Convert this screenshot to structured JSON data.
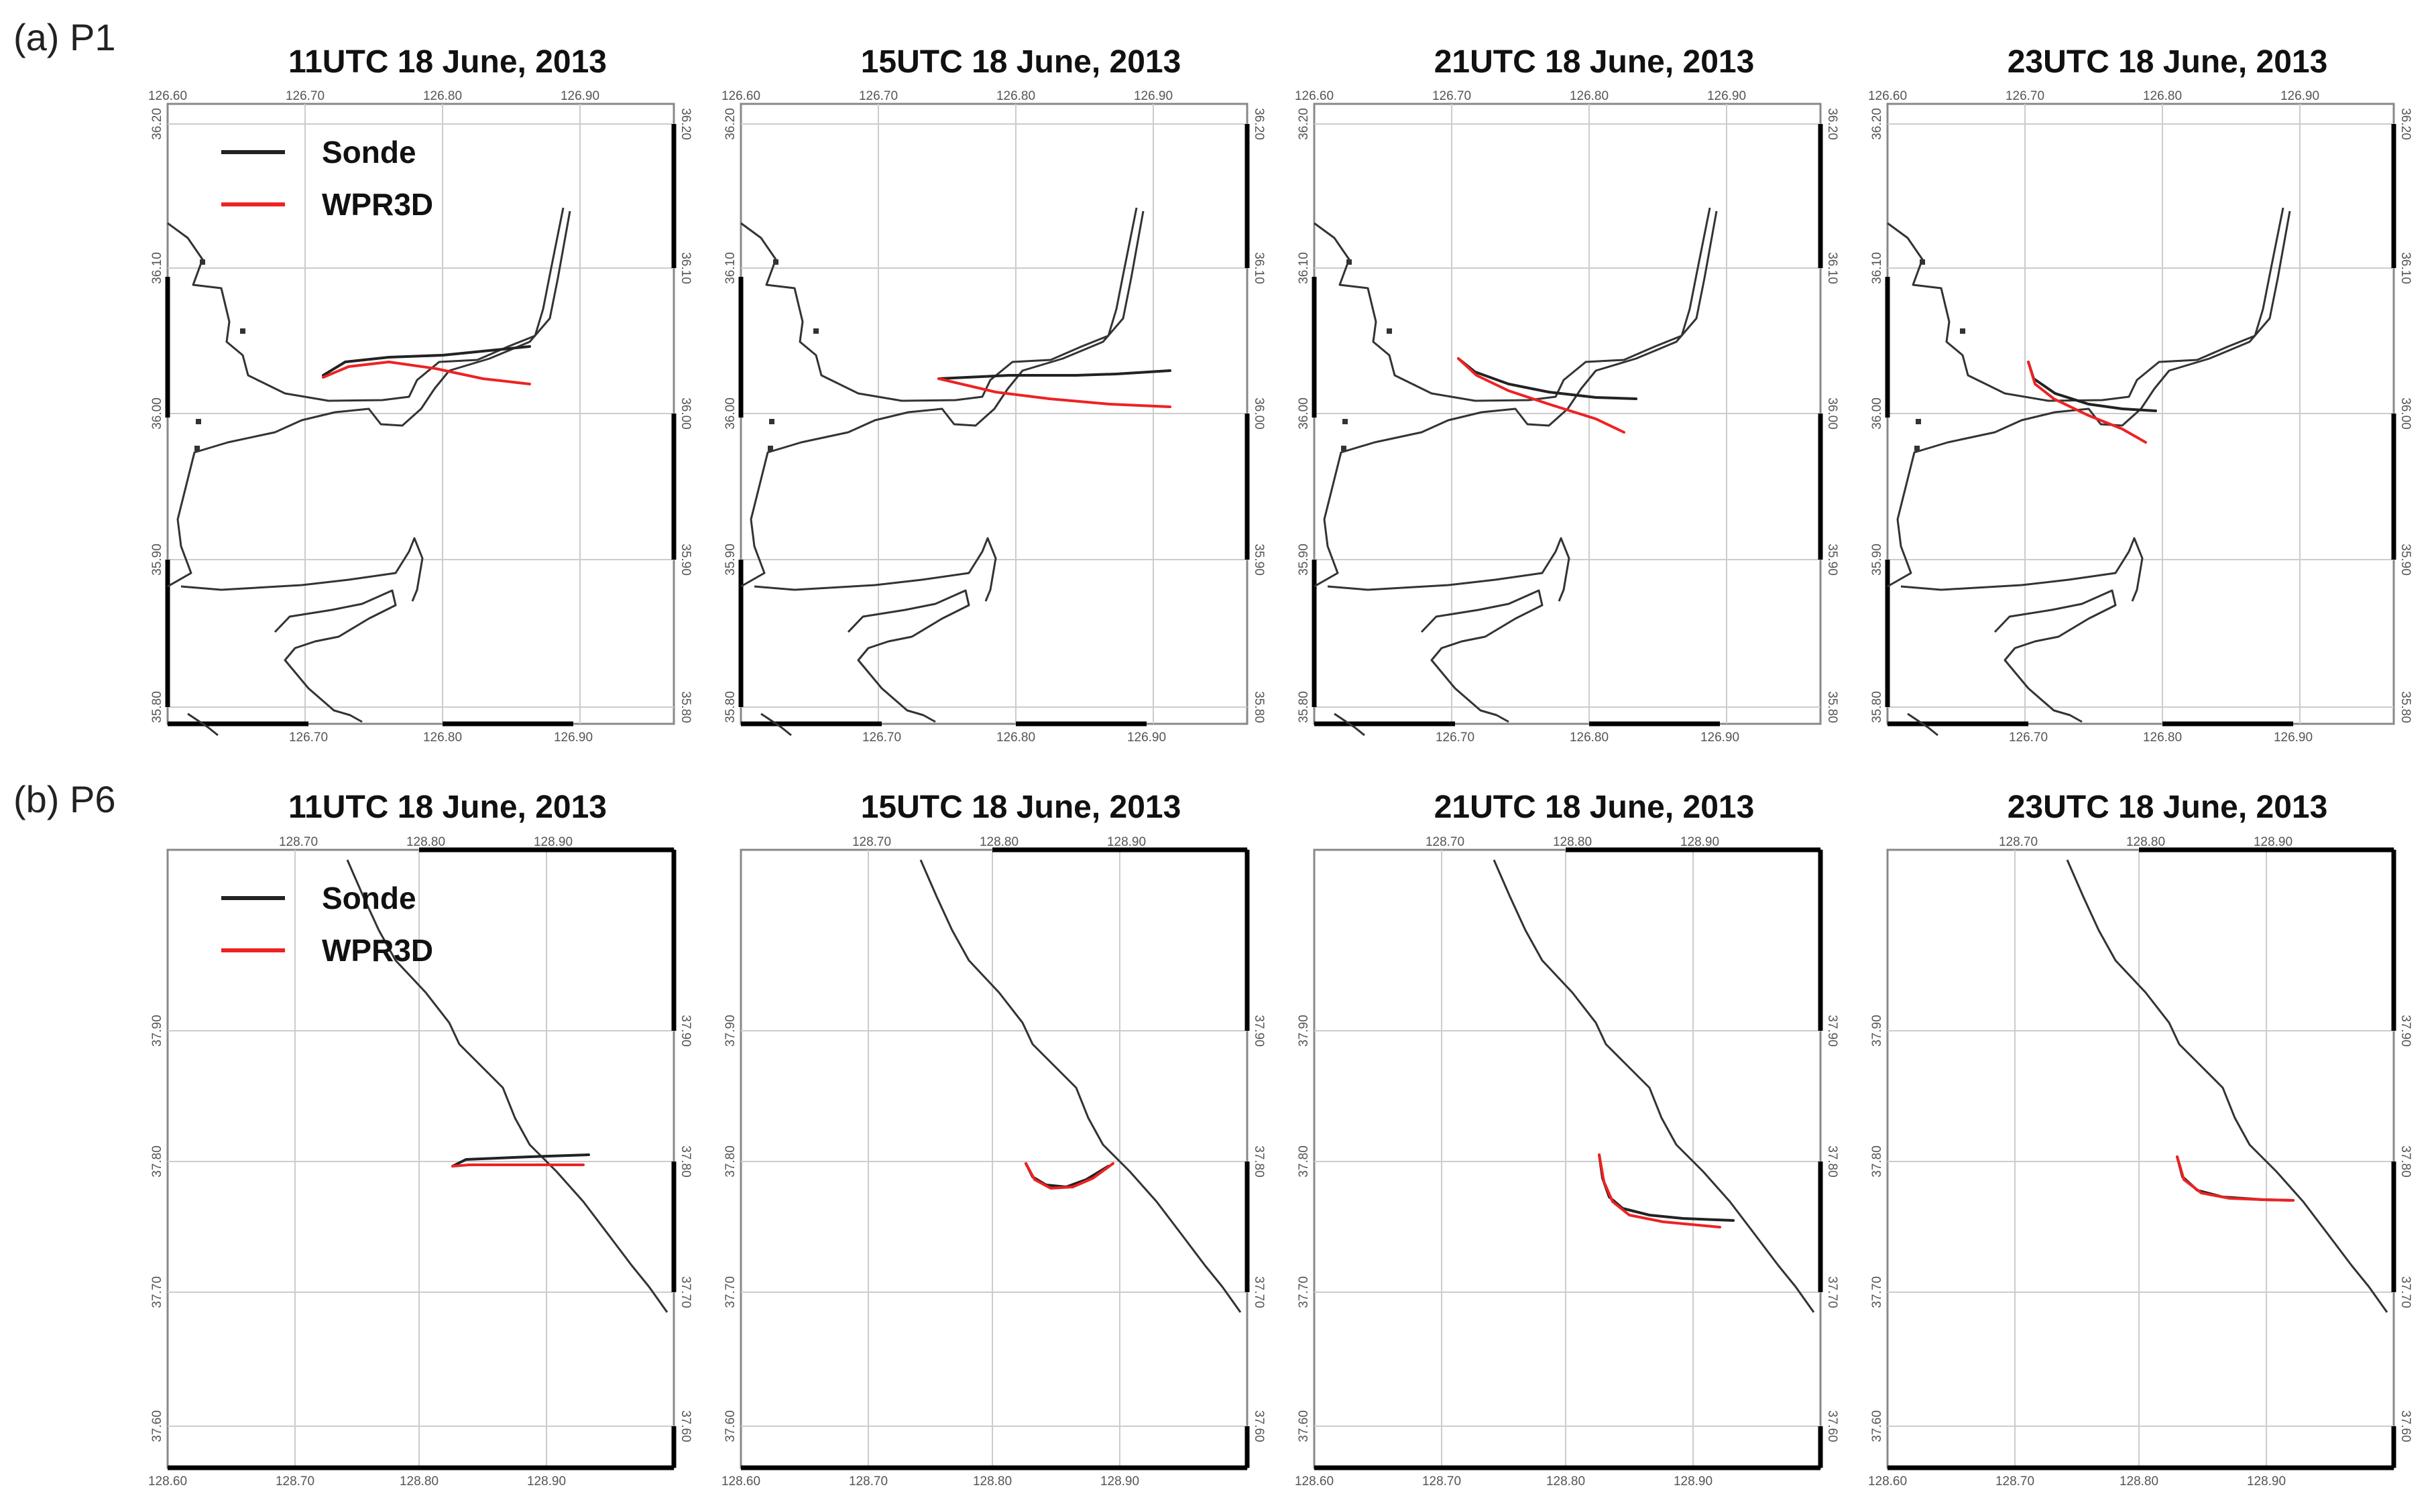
{
  "rows": [
    {
      "label": "(a) P1",
      "lon_ticks_top": [
        "126.60",
        "126.70",
        "126.80",
        "126.90"
      ],
      "lon_ticks_bottom": [
        "126.70",
        "126.80",
        "126.90"
      ],
      "lat_ticks": [
        "36.20",
        "36.10",
        "36.00",
        "35.90",
        "35.80"
      ],
      "panels": [
        {
          "title": "11UTC 18 June, 2013",
          "show_legend": true
        },
        {
          "title": "15UTC 18 June, 2013",
          "show_legend": false
        },
        {
          "title": "21UTC 18 June, 2013",
          "show_legend": false
        },
        {
          "title": "23UTC 18 June, 2013",
          "show_legend": false
        }
      ]
    },
    {
      "label": "(b) P6",
      "lon_ticks_top": [
        "128.70",
        "128.80",
        "128.90"
      ],
      "lon_ticks_bottom": [
        "128.60",
        "128.70",
        "128.80",
        "128.90"
      ],
      "lat_ticks": [
        "37.90",
        "37.80",
        "37.70",
        "37.60"
      ],
      "panels": [
        {
          "title": "11UTC 18 June, 2013",
          "show_legend": true
        },
        {
          "title": "15UTC 18 June, 2013",
          "show_legend": false
        },
        {
          "title": "21UTC 18 June, 2013",
          "show_legend": false
        },
        {
          "title": "23UTC 18 June, 2013",
          "show_legend": false
        }
      ]
    }
  ],
  "legend": [
    {
      "name": "Sonde",
      "color": "#222222"
    },
    {
      "name": "WPR3D",
      "color": "#ee2222"
    }
  ],
  "colors": {
    "coast": "#333333",
    "grid": "#cccccc",
    "frame": "#888888",
    "axis_bar": "#000000"
  }
}
